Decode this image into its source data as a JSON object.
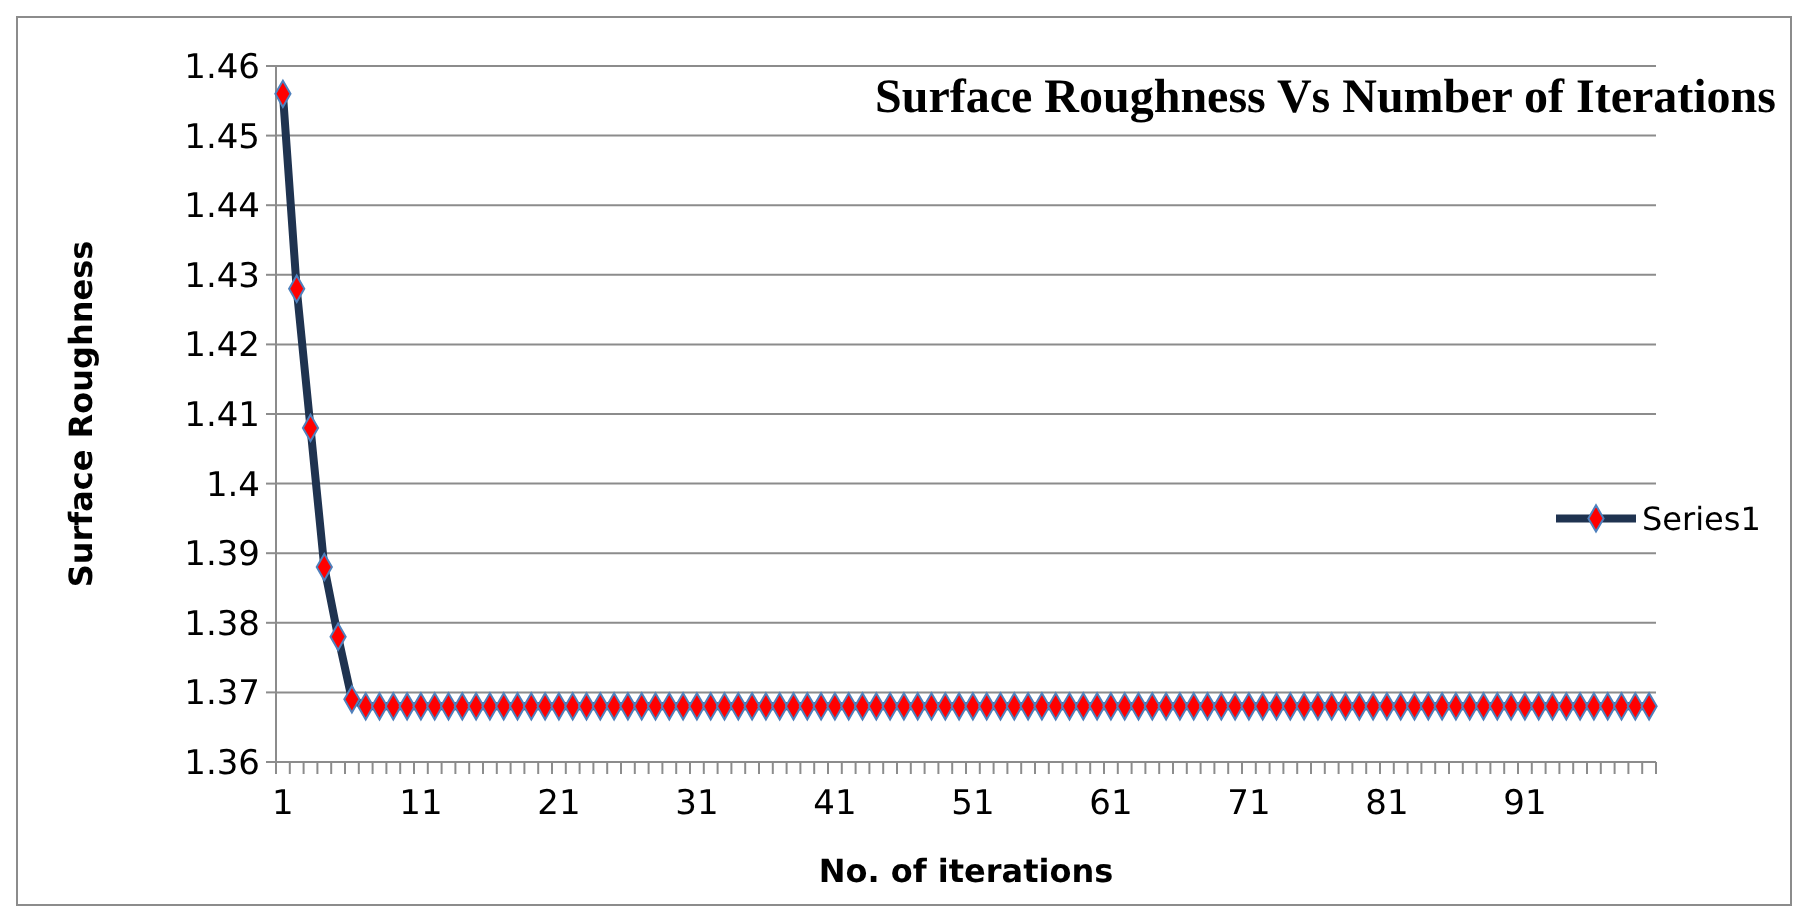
{
  "chart_data": {
    "type": "line",
    "title": "Surface Roughness Vs Number of Iterations",
    "xlabel": "No. of iterations",
    "ylabel": "Surface Roughness",
    "categories": [
      "1",
      null,
      null,
      null,
      null,
      null,
      null,
      null,
      null,
      null,
      "11",
      null,
      null,
      null,
      null,
      null,
      null,
      null,
      null,
      null,
      "21",
      null,
      null,
      null,
      null,
      null,
      null,
      null,
      null,
      null,
      "31",
      null,
      null,
      null,
      null,
      null,
      null,
      null,
      null,
      null,
      "41",
      null,
      null,
      null,
      null,
      null,
      null,
      null,
      null,
      null,
      "51",
      null,
      null,
      null,
      null,
      null,
      null,
      null,
      null,
      null,
      "61",
      null,
      null,
      null,
      null,
      null,
      null,
      null,
      null,
      null,
      "71",
      null,
      null,
      null,
      null,
      null,
      null,
      null,
      null,
      null,
      "81",
      null,
      null,
      null,
      null,
      null,
      null,
      null,
      null,
      null,
      "91",
      null,
      null,
      null,
      null,
      null,
      null,
      null,
      null,
      null
    ],
    "series": [
      {
        "name": "Series1",
        "color": "#1f3350",
        "values": [
          1.456,
          1.428,
          1.408,
          1.388,
          1.378,
          1.369,
          1.368,
          1.368,
          1.368,
          1.368,
          1.368,
          1.368,
          1.368,
          1.368,
          1.368,
          1.368,
          1.368,
          1.368,
          1.368,
          1.368,
          1.368,
          1.368,
          1.368,
          1.368,
          1.368,
          1.368,
          1.368,
          1.368,
          1.368,
          1.368,
          1.368,
          1.368,
          1.368,
          1.368,
          1.368,
          1.368,
          1.368,
          1.368,
          1.368,
          1.368,
          1.368,
          1.368,
          1.368,
          1.368,
          1.368,
          1.368,
          1.368,
          1.368,
          1.368,
          1.368,
          1.368,
          1.368,
          1.368,
          1.368,
          1.368,
          1.368,
          1.368,
          1.368,
          1.368,
          1.368,
          1.368,
          1.368,
          1.368,
          1.368,
          1.368,
          1.368,
          1.368,
          1.368,
          1.368,
          1.368,
          1.368,
          1.368,
          1.368,
          1.368,
          1.368,
          1.368,
          1.368,
          1.368,
          1.368,
          1.368,
          1.368,
          1.368,
          1.368,
          1.368,
          1.368,
          1.368,
          1.368,
          1.368,
          1.368,
          1.368,
          1.368,
          1.368,
          1.368,
          1.368,
          1.368,
          1.368,
          1.368,
          1.368,
          1.368,
          1.368
        ]
      }
    ],
    "ylim": [
      1.36,
      1.46
    ],
    "yticks": [
      1.36,
      {
        "value": 1.37,
        "label": "1.37"
      },
      1.38,
      1.39,
      {
        "value": 1.4,
        "label": "1.4"
      },
      1.41,
      1.42,
      1.43,
      1.44,
      1.45,
      1.46
    ],
    "grid": "y",
    "legend": "right",
    "marker": "diamond",
    "line_style": "solid"
  }
}
